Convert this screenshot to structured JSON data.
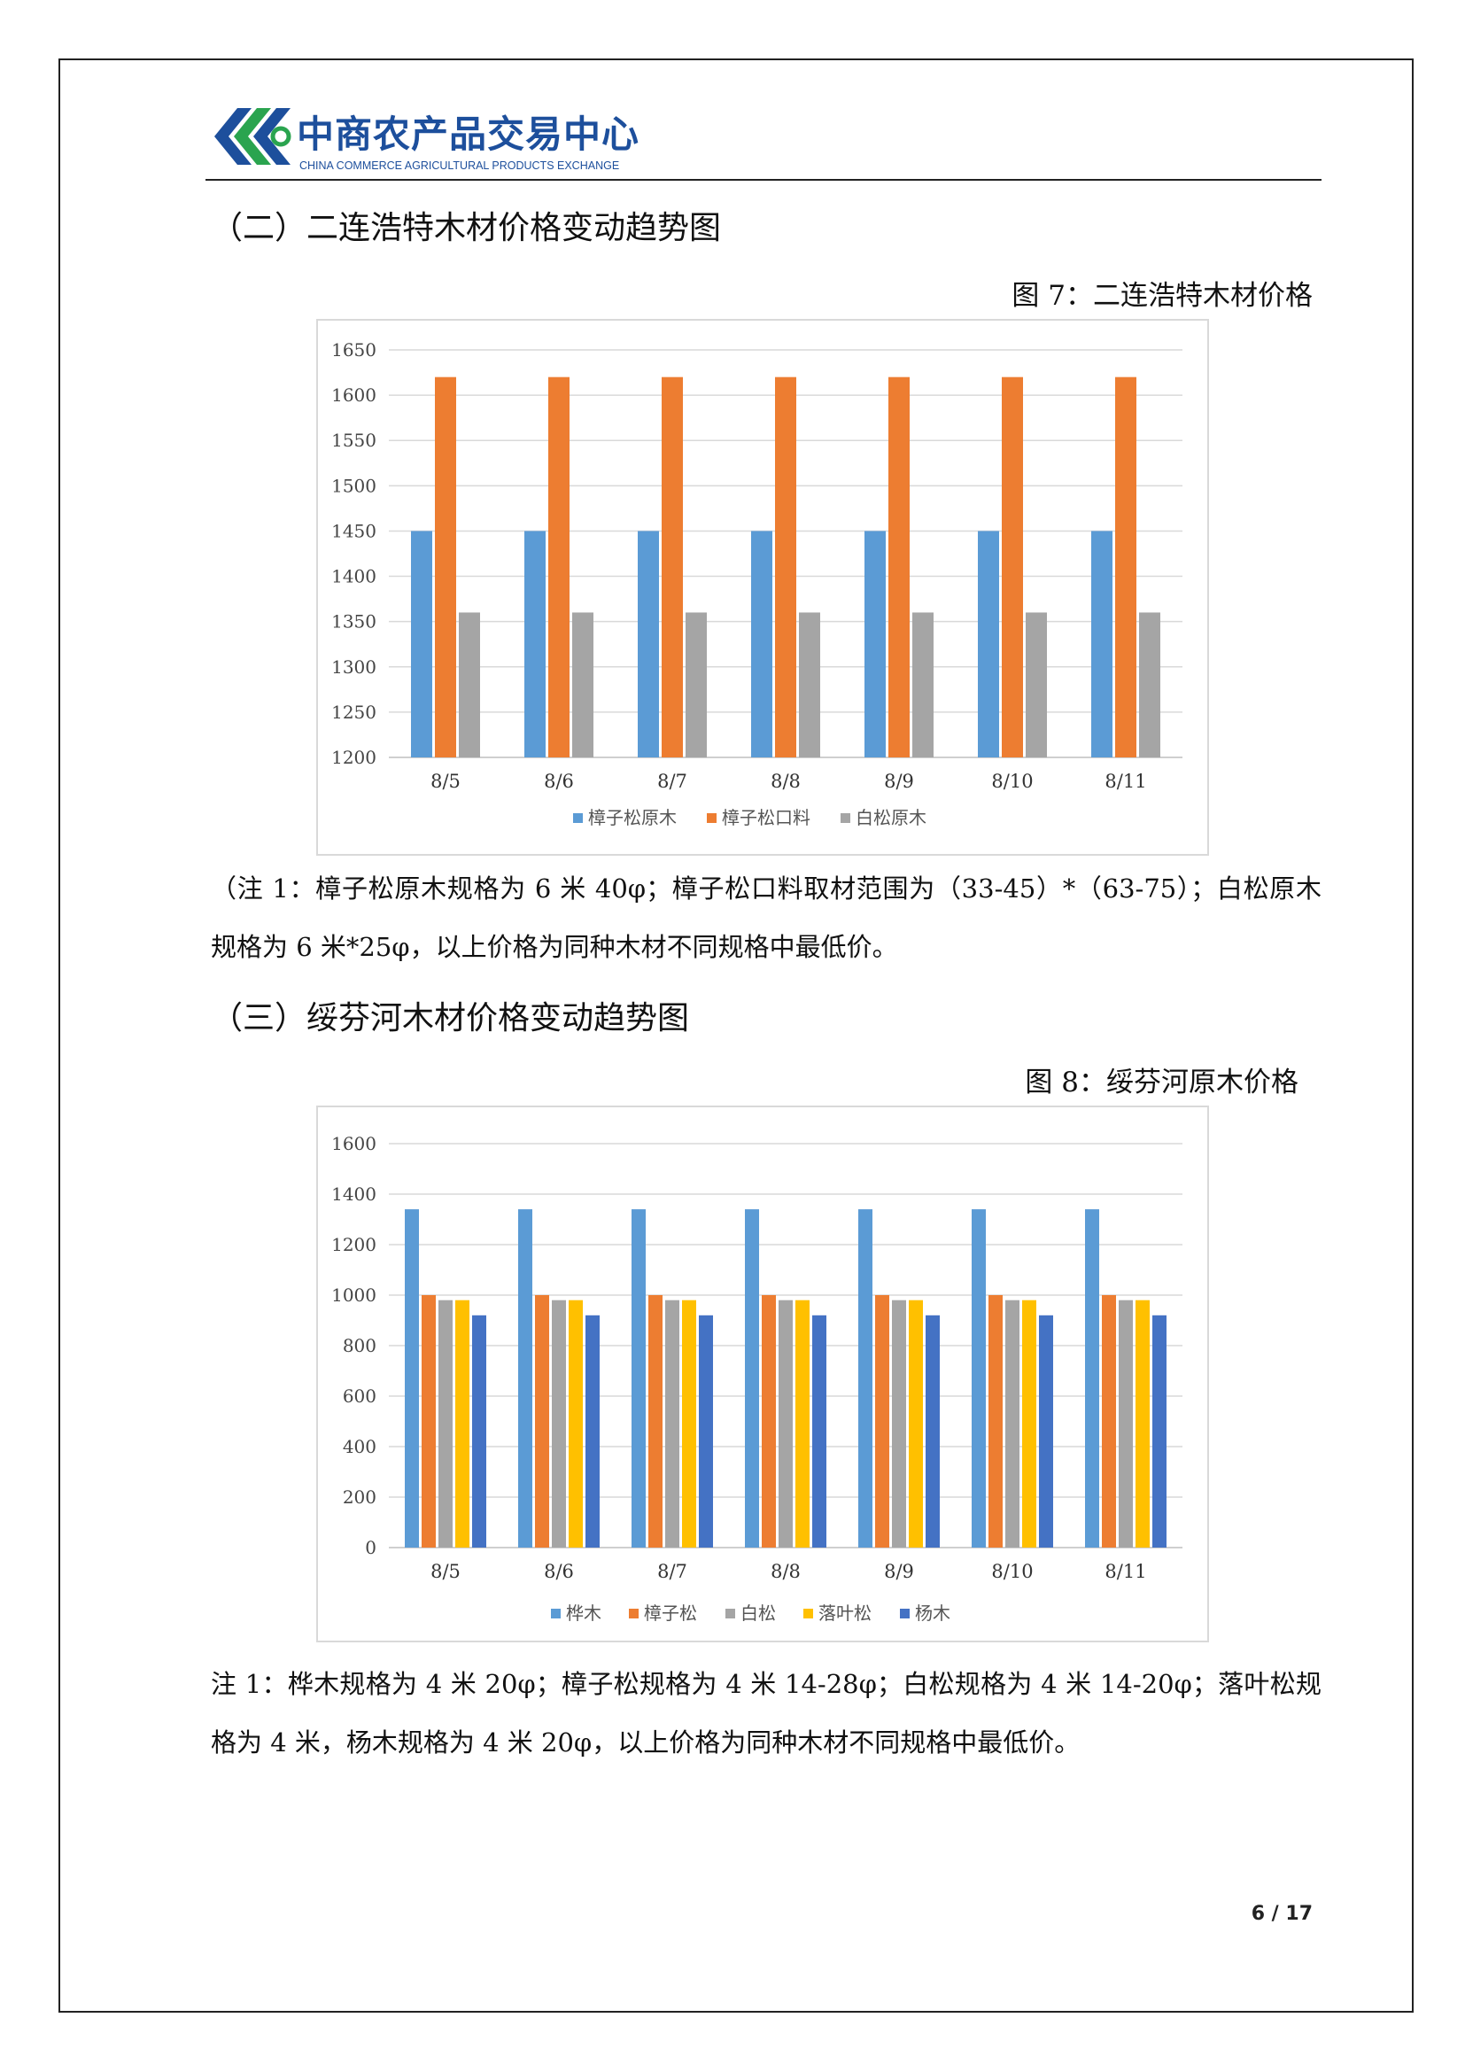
{
  "header": {
    "logo_cn": "中商农产品交易中心",
    "logo_en": "CHINA COMMERCE AGRICULTURAL PRODUCTS EXCHANGE",
    "brand_color": "#1d4f9c",
    "accent_color": "#2aa44f"
  },
  "section2": {
    "title": "（二）二连浩特木材价格变动趋势图",
    "figure_caption": "图 7：二连浩特木材价格",
    "note": "（注 1：樟子松原木规格为 6 米 40φ；樟子松口料取材范围为（33-45）*（63-75）；白松原木规格为 6 米*25φ，以上价格为同种木材不同规格中最低价。"
  },
  "section3": {
    "title": "（三）绥芬河木材价格变动趋势图",
    "figure_caption": "图 8：绥芬河原木价格",
    "note": "注 1：桦木规格为 4 米 20φ；樟子松规格为 4 米 14-28φ；白松规格为 4 米 14-20φ；落叶松规格为 4 米，杨木规格为 4 米 20φ，以上价格为同种木材不同规格中最低价。"
  },
  "footer": {
    "page_number": "6 / 17"
  },
  "chart_data": [
    {
      "type": "bar",
      "title": "",
      "categories": [
        "8/5",
        "8/6",
        "8/7",
        "8/8",
        "8/9",
        "8/10",
        "8/11"
      ],
      "ylim": [
        1200,
        1650
      ],
      "yticks": [
        1200,
        1250,
        1300,
        1350,
        1400,
        1450,
        1500,
        1550,
        1600,
        1650
      ],
      "grid": true,
      "legend_position": "bottom",
      "series": [
        {
          "name": "樟子松原木",
          "color": "#5b9bd5",
          "values": [
            1450,
            1450,
            1450,
            1450,
            1450,
            1450,
            1450
          ]
        },
        {
          "name": "樟子松口料",
          "color": "#ed7d31",
          "values": [
            1620,
            1620,
            1620,
            1620,
            1620,
            1620,
            1620
          ]
        },
        {
          "name": "白松原木",
          "color": "#a5a5a5",
          "values": [
            1360,
            1360,
            1360,
            1360,
            1360,
            1360,
            1360
          ]
        }
      ]
    },
    {
      "type": "bar",
      "title": "",
      "categories": [
        "8/5",
        "8/6",
        "8/7",
        "8/8",
        "8/9",
        "8/10",
        "8/11"
      ],
      "ylim": [
        0,
        1600
      ],
      "yticks": [
        0,
        200,
        400,
        600,
        800,
        1000,
        1200,
        1400,
        1600
      ],
      "grid": true,
      "legend_position": "bottom",
      "series": [
        {
          "name": "桦木",
          "color": "#5b9bd5",
          "values": [
            1340,
            1340,
            1340,
            1340,
            1340,
            1340,
            1340
          ]
        },
        {
          "name": "樟子松",
          "color": "#ed7d31",
          "values": [
            1000,
            1000,
            1000,
            1000,
            1000,
            1000,
            1000
          ]
        },
        {
          "name": "白松",
          "color": "#a5a5a5",
          "values": [
            980,
            980,
            980,
            980,
            980,
            980,
            980
          ]
        },
        {
          "name": "落叶松",
          "color": "#ffc000",
          "values": [
            980,
            980,
            980,
            980,
            980,
            980,
            980
          ]
        },
        {
          "name": "杨木",
          "color": "#4472c4",
          "values": [
            920,
            920,
            920,
            920,
            920,
            920,
            920
          ]
        }
      ]
    }
  ]
}
